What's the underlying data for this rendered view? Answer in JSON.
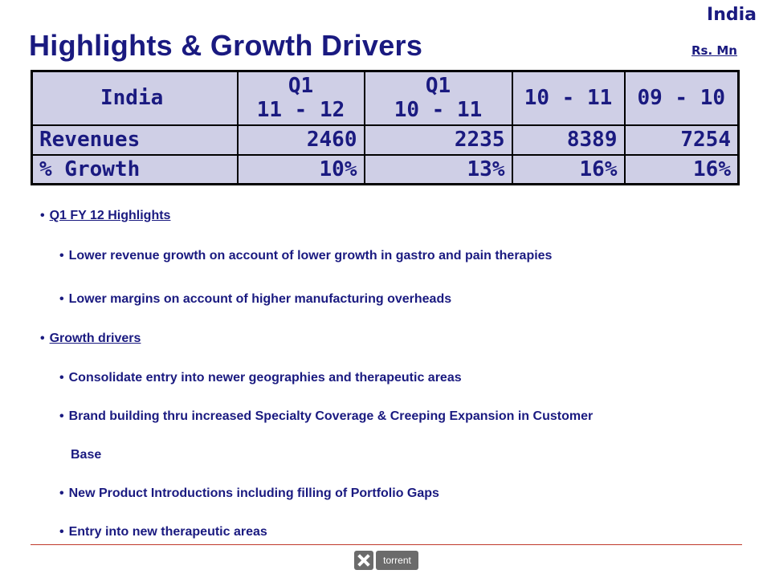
{
  "header": {
    "region": "India",
    "title": "Highlights & Growth Drivers",
    "unit": "Rs.  Mn"
  },
  "table": {
    "columns": [
      {
        "lines": [
          "India"
        ]
      },
      {
        "lines": [
          "Q1",
          "11 - 12"
        ]
      },
      {
        "lines": [
          "Q1",
          "10 - 11"
        ]
      },
      {
        "lines": [
          "10 - 11"
        ]
      },
      {
        "lines": [
          "09 - 10"
        ]
      }
    ],
    "rows": [
      {
        "label": "Revenues",
        "values": [
          "2460",
          "2235",
          "8389",
          "7254"
        ]
      },
      {
        "label": "% Growth",
        "values": [
          "10%",
          "13%",
          "16%",
          "16%"
        ]
      }
    ]
  },
  "sections": [
    {
      "heading": "Q1 FY 12 Highlights",
      "items": [
        "Lower revenue growth on account of lower growth in gastro and pain therapies",
        "Lower margins on account of higher manufacturing overheads"
      ]
    },
    {
      "heading": "Growth drivers",
      "items": [
        "Consolidate entry into newer geographies and therapeutic areas",
        "Brand building thru increased Specialty Coverage & Creeping Expansion in Customer",
        "Base",
        "New Product Introductions including filling of Portfolio Gaps",
        "Entry into new therapeutic areas"
      ]
    }
  ],
  "footer": {
    "logo_text": "torrent"
  }
}
